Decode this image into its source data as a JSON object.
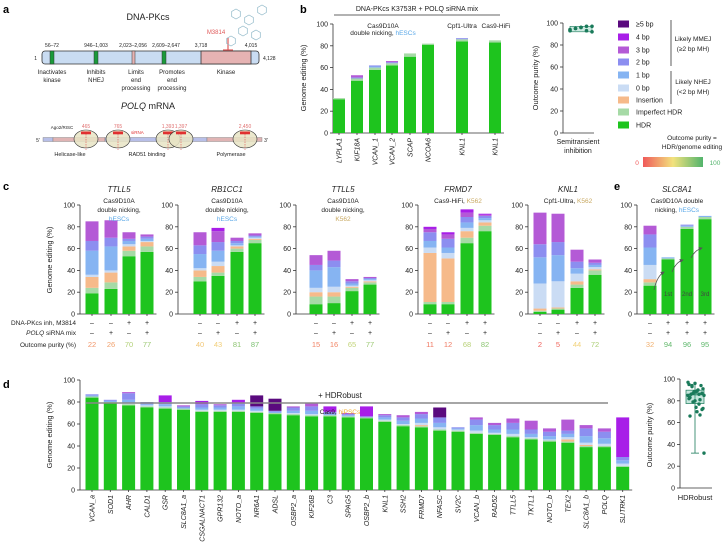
{
  "panel_labels": [
    "a",
    "b",
    "c",
    "d",
    "e"
  ],
  "legend": {
    "items": [
      {
        "label": "≥5 bp",
        "color": "#5a0a7e"
      },
      {
        "label": "4 bp",
        "color": "#a81ee8"
      },
      {
        "label": "3 bp",
        "color": "#b45ad6"
      },
      {
        "label": "2 bp",
        "color": "#8c8ef0"
      },
      {
        "label": "1 bp",
        "color": "#86b4f2"
      },
      {
        "label": "0 bp",
        "color": "#cadcf4"
      },
      {
        "label": "Insertion",
        "color": "#f6ba8a"
      },
      {
        "label": "Imperfect HDR",
        "color": "#a6daa6"
      },
      {
        "label": "HDR",
        "color": "#1ec41e"
      }
    ],
    "mmej": [
      "Likely MMEJ",
      "(≥2 bp MH)"
    ],
    "nhej": [
      "Likely NHEJ",
      "(<2 bp MH)"
    ],
    "purity_def": [
      "Outcome purity =",
      "HDR/genome editing"
    ],
    "scale_min": "0",
    "scale_max": "100",
    "scale_colors": [
      "#f05a5a",
      "#f2e27e",
      "#52b46c"
    ]
  },
  "cell_colors": {
    "hESCs": "#5aa8e8",
    "K562": "#c8a860",
    "hiPSCs": "#f0b030"
  },
  "panel_a": {
    "dnapkcs": {
      "title": "DNA-PKcs",
      "start": "1",
      "end": "4,128",
      "positions": [
        "56–72",
        "946–1,003",
        "2,023–2,056",
        "2,609–2,647",
        "3,718",
        "4,015"
      ],
      "domains": [
        [
          "Inactivates",
          "kinase"
        ],
        [
          "Inhibits",
          "NHEJ"
        ],
        [
          "Limits",
          "end",
          "processing"
        ],
        [
          "Promotes",
          "end",
          "processing"
        ],
        [
          "Kinase"
        ]
      ],
      "inhibitor": "M3814"
    },
    "polq": {
      "title_gene": "POLQ",
      "title_rest": " mRNA",
      "five": "5'",
      "three": "3'",
      "risc": "Ago2/RISC",
      "sirna": "siRNA",
      "sites": [
        "465",
        "765",
        "1,393",
        "1,397",
        "2,450"
      ],
      "domains": [
        "Helicase-like",
        "RAD51 binding",
        "Polymerase"
      ]
    }
  },
  "conditions_labels": {
    "dnapkcs": "DNA-PKcs inh, M3814",
    "polq_gene": "POLQ",
    "polq_rest": " siRNA mix",
    "purity": "Outcome purity (%)"
  },
  "chart_data": [
    {
      "type": "bar",
      "stacked": true,
      "header": "DNA-PKcs K3753R + POLQ siRNA mix",
      "groups": [
        {
          "lines": [
            "Cas9D10A",
            "double nicking, "
          ],
          "cell": "hESCs"
        },
        {
          "lines": [
            "Cpf1-Ultra"
          ],
          "cell": ""
        },
        {
          "lines": [
            "Cas9-HiFi"
          ],
          "cell": ""
        }
      ],
      "ylabel": "Genome editing (%)",
      "ylim": [
        0,
        100
      ],
      "yticks": [
        0,
        20,
        40,
        60,
        80,
        100
      ],
      "categories": [
        "LYPLA1",
        "KIF18A",
        "VCAN_1",
        "VCAN_2",
        "SCAP",
        "NCOA6",
        "KNL1",
        "KNL1"
      ],
      "stack_order": [
        "HDR",
        "Imperfect HDR",
        "Insertion",
        "0 bp",
        "1 bp",
        "2 bp",
        "3 bp",
        "4 bp",
        "≥5 bp"
      ],
      "stacks": [
        [
          31,
          1,
          0,
          0,
          0,
          0,
          0,
          0,
          0
        ],
        [
          48,
          2,
          0,
          0,
          0,
          1,
          2,
          0,
          0
        ],
        [
          58,
          2,
          0,
          0,
          1,
          1,
          0,
          0,
          0
        ],
        [
          62,
          2,
          0,
          0,
          0,
          1,
          1,
          0,
          0
        ],
        [
          70,
          3,
          0,
          0,
          0,
          0,
          0,
          0,
          0
        ],
        [
          81,
          1,
          0,
          0,
          0,
          0,
          0,
          0,
          0
        ],
        [
          84,
          2,
          0,
          0,
          0,
          1,
          0,
          0,
          0
        ],
        [
          83,
          2,
          0,
          0,
          0,
          0,
          0,
          0,
          0
        ]
      ]
    },
    {
      "type": "scatter",
      "ylabel": "Outcome purity (%)",
      "xlabel": [
        "Semitransient",
        "inhibition"
      ],
      "ylim": [
        0,
        100
      ],
      "yticks": [
        0,
        20,
        40,
        60,
        80,
        100
      ],
      "values": [
        93,
        95,
        96,
        97,
        92,
        94,
        95,
        96,
        93,
        97
      ]
    },
    {
      "type": "bar",
      "stacked": true,
      "title": "TTLL5",
      "subtitle": [
        "Cas9D10A",
        "double nicking,"
      ],
      "cell": "hESCs",
      "ylabel": "Genome editing (%)",
      "ylim": [
        0,
        100
      ],
      "yticks": [
        0,
        20,
        40,
        60,
        80,
        100
      ],
      "dnapkcs_inhibitor": [
        "–",
        "–",
        "+",
        "+"
      ],
      "polq_sirna": [
        "–",
        "+",
        "–",
        "+"
      ],
      "outcome_purity": [
        22,
        26,
        70,
        77
      ],
      "stacks": [
        [
          19,
          5,
          10,
          2,
          22,
          9,
          18,
          0,
          0
        ],
        [
          23,
          6,
          9,
          2,
          22,
          8,
          16,
          0,
          0
        ],
        [
          53,
          5,
          4,
          2,
          3,
          2,
          6,
          0,
          0
        ],
        [
          57,
          5,
          4,
          1,
          2,
          2,
          2,
          0,
          0
        ]
      ]
    },
    {
      "type": "bar",
      "stacked": true,
      "title": "RB1CC1",
      "subtitle": [
        "Cas9D10A",
        "double nicking,"
      ],
      "cell": "hESCs",
      "ylim": [
        0,
        100
      ],
      "yticks": [
        0,
        20,
        40,
        60,
        80,
        100
      ],
      "dnapkcs_inhibitor": [
        "–",
        "–",
        "+",
        "+"
      ],
      "polq_sirna": [
        "–",
        "+",
        "–",
        "+"
      ],
      "outcome_purity": [
        40,
        43,
        81,
        87
      ],
      "stacks": [
        [
          30,
          4,
          6,
          2,
          13,
          8,
          12,
          0,
          0
        ],
        [
          35,
          3,
          6,
          4,
          10,
          8,
          10,
          3,
          0
        ],
        [
          57,
          3,
          2,
          1,
          2,
          2,
          3,
          0,
          0
        ],
        [
          65,
          3,
          1,
          1,
          1,
          1,
          2,
          0,
          0
        ]
      ]
    },
    {
      "type": "bar",
      "stacked": true,
      "title": "TTLL5",
      "subtitle": [
        "Cas9D10A",
        "double nicking,"
      ],
      "cell": "K562",
      "ylim": [
        0,
        100
      ],
      "yticks": [
        0,
        20,
        40,
        60,
        80,
        100
      ],
      "dnapkcs_inhibitor": [
        "–",
        "–",
        "+",
        "+"
      ],
      "polq_sirna": [
        "–",
        "+",
        "–",
        "+"
      ],
      "outcome_purity": [
        15,
        16,
        65,
        77
      ],
      "stacks": [
        [
          9,
          7,
          4,
          4,
          16,
          5,
          9,
          0,
          0
        ],
        [
          10,
          6,
          4,
          5,
          18,
          6,
          9,
          0,
          0
        ],
        [
          21,
          3,
          1,
          1,
          2,
          2,
          2,
          0,
          0
        ],
        [
          27,
          2,
          1,
          1,
          1,
          1,
          1,
          0,
          0
        ]
      ]
    },
    {
      "type": "bar",
      "stacked": true,
      "title": "FRMD7",
      "subtitle": [
        "Cas9-HiFi, "
      ],
      "cell": "K562",
      "ylim": [
        0,
        100
      ],
      "yticks": [
        0,
        20,
        40,
        60,
        80,
        100
      ],
      "dnapkcs_inhibitor": [
        "–",
        "–",
        "+",
        "+"
      ],
      "polq_sirna": [
        "–",
        "+",
        "–",
        "+"
      ],
      "outcome_purity": [
        11,
        12,
        68,
        82
      ],
      "stacks": [
        [
          9,
          2,
          45,
          5,
          6,
          8,
          3,
          2,
          0
        ],
        [
          9,
          2,
          40,
          5,
          5,
          8,
          4,
          2,
          0
        ],
        [
          65,
          5,
          6,
          3,
          5,
          5,
          4,
          3,
          0
        ],
        [
          76,
          5,
          3,
          2,
          2,
          2,
          1,
          1,
          0
        ]
      ]
    },
    {
      "type": "bar",
      "stacked": true,
      "title": "KNL1",
      "subtitle": [
        "Cpf1-Ultra, "
      ],
      "cell": "K562",
      "ylim": [
        0,
        100
      ],
      "yticks": [
        0,
        20,
        40,
        60,
        80,
        100
      ],
      "dnapkcs_inhibitor": [
        "–",
        "–",
        "+",
        "+"
      ],
      "polq_sirna": [
        "–",
        "+",
        "–",
        "+"
      ],
      "outcome_purity": [
        2,
        5,
        44,
        72
      ],
      "stacks": [
        [
          2,
          1,
          2,
          23,
          24,
          12,
          29,
          0,
          0
        ],
        [
          4,
          1,
          1,
          24,
          24,
          12,
          26,
          0,
          0
        ],
        [
          24,
          3,
          3,
          7,
          5,
          6,
          11,
          0,
          0
        ],
        [
          36,
          4,
          1,
          2,
          2,
          2,
          3,
          0,
          0
        ]
      ]
    },
    {
      "type": "bar",
      "stacked": true,
      "title": "SLC8A1",
      "subtitle": [
        "Cas9D10A double",
        "nicking, "
      ],
      "cell": "hESCs",
      "ylim": [
        0,
        100
      ],
      "yticks": [
        0,
        20,
        40,
        60,
        80,
        100
      ],
      "dnapkcs_inhibitor": [
        "–",
        "+",
        "+",
        "+"
      ],
      "polq_sirna": [
        "–",
        "+",
        "+",
        "+"
      ],
      "outcome_purity": [
        32,
        94,
        96,
        95
      ],
      "rounds": [
        "1st",
        "2nd",
        "3rd"
      ],
      "stacks": [
        [
          26,
          3,
          3,
          13,
          16,
          12,
          8,
          0,
          0
        ],
        [
          50,
          1,
          0,
          0,
          1,
          0,
          0,
          0,
          0
        ],
        [
          78,
          2,
          0,
          0,
          1,
          1,
          0,
          0,
          0
        ],
        [
          87,
          2,
          0,
          0,
          1,
          0,
          0,
          0,
          0
        ]
      ]
    },
    {
      "type": "bar",
      "stacked": true,
      "header": "+ HDRobust",
      "subtitle": "Cas9, ",
      "cell": "hiPSCs",
      "ylabel": "Genome editing (%)",
      "ylim": [
        0,
        100
      ],
      "yticks": [
        0,
        20,
        40,
        60,
        80,
        100
      ],
      "categories": [
        "VCAN_a",
        "SOD1",
        "AHR",
        "CALD1",
        "GSR",
        "SLC8A1_a",
        "CSGALNACT1",
        "GPR132",
        "NOTO_a",
        "NR6A1",
        "ADSL",
        "OSBP2_a",
        "KIF26B",
        "C3",
        "SPAG5",
        "OSBP2_b",
        "KNL1",
        "SSH2",
        "FRMD7",
        "NFASC",
        "SV2C",
        "VCAN_b",
        "RAD52",
        "TTLL5",
        "TKTL1",
        "NOTO_b",
        "TEX2",
        "SLC8A1_b",
        "POLQ",
        "SLITRK1"
      ],
      "stacks": [
        [
          84,
          1,
          0,
          0,
          1,
          1,
          0,
          0,
          0
        ],
        [
          79,
          1,
          0,
          0,
          1,
          1,
          0,
          0,
          0
        ],
        [
          77,
          1,
          0,
          1,
          3,
          6,
          1,
          0,
          0
        ],
        [
          75,
          1,
          0,
          1,
          1,
          2,
          0,
          0,
          0
        ],
        [
          74,
          1,
          0,
          1,
          2,
          2,
          0,
          6,
          0
        ],
        [
          73,
          1,
          0,
          0,
          1,
          1,
          1,
          0,
          0
        ],
        [
          71,
          1,
          0,
          1,
          2,
          3,
          0,
          3,
          0
        ],
        [
          71,
          1,
          0,
          1,
          2,
          2,
          1,
          0,
          0
        ],
        [
          71,
          1,
          0,
          1,
          3,
          3,
          0,
          3,
          0
        ],
        [
          70,
          1,
          0,
          1,
          2,
          2,
          0,
          0,
          10
        ],
        [
          69,
          1,
          0,
          0,
          1,
          1,
          0,
          0,
          11
        ],
        [
          68,
          1,
          0,
          1,
          2,
          3,
          1,
          0,
          0
        ],
        [
          67,
          1,
          0,
          1,
          3,
          4,
          3,
          0,
          0
        ],
        [
          67,
          1,
          0,
          0,
          1,
          2,
          0,
          5,
          0
        ],
        [
          66,
          1,
          0,
          0,
          1,
          1,
          1,
          0,
          0
        ],
        [
          65,
          1,
          0,
          0,
          0,
          1,
          0,
          9,
          0
        ],
        [
          62,
          1,
          0,
          1,
          2,
          2,
          1,
          0,
          0
        ],
        [
          58,
          1,
          0,
          1,
          3,
          3,
          2,
          0,
          0
        ],
        [
          57,
          1,
          1,
          2,
          4,
          4,
          2,
          0,
          0
        ],
        [
          54,
          1,
          0,
          2,
          4,
          5,
          0,
          0,
          9
        ],
        [
          53,
          1,
          0,
          1,
          1,
          1,
          0,
          0,
          0
        ],
        [
          51,
          1,
          0,
          2,
          5,
          5,
          2,
          0,
          0
        ],
        [
          50,
          1,
          0,
          1,
          3,
          4,
          2,
          0,
          0
        ],
        [
          48,
          1,
          0,
          2,
          4,
          6,
          4,
          0,
          0
        ],
        [
          46,
          1,
          0,
          1,
          3,
          4,
          8,
          0,
          0
        ],
        [
          44,
          1,
          0,
          1,
          3,
          4,
          3,
          0,
          0
        ],
        [
          43,
          1,
          2,
          2,
          3,
          3,
          10,
          0,
          0
        ],
        [
          39,
          1,
          1,
          2,
          6,
          7,
          3,
          0,
          0
        ],
        [
          39,
          1,
          0,
          2,
          5,
          6,
          3,
          0,
          0
        ],
        [
          21,
          1,
          0,
          2,
          3,
          3,
          0,
          36,
          0
        ]
      ]
    },
    {
      "type": "box",
      "ylabel": "Outcome purity (%)",
      "xlabel": "HDRobust",
      "ylim": [
        0,
        100
      ],
      "yticks": [
        0,
        20,
        40,
        60,
        80,
        100
      ],
      "values": [
        97,
        96,
        87,
        94,
        86,
        95,
        88,
        91,
        87,
        81,
        83,
        89,
        85,
        88,
        94,
        86,
        90,
        85,
        80,
        72,
        93,
        77,
        82,
        74,
        73,
        79,
        67,
        66,
        70,
        32
      ]
    }
  ]
}
